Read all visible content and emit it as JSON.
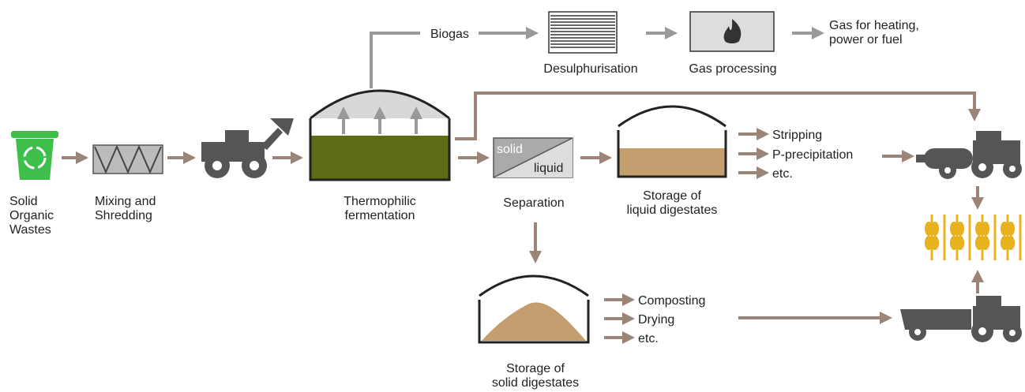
{
  "nodes": [
    {
      "label": [
        "Solid",
        "Organic",
        "Wastes"
      ]
    },
    {
      "label": [
        "Mixing and",
        "Shredding"
      ]
    },
    {
      "label": [
        "Thermophilic",
        "fermentation"
      ]
    },
    {
      "label": [
        "Biogas"
      ]
    },
    {
      "label": [
        "Desulphurisation"
      ]
    },
    {
      "label": [
        "Gas processing"
      ]
    },
    {
      "label": [
        "Gas for heating,",
        "power or fuel"
      ]
    },
    {
      "label": [
        "Separation"
      ],
      "box": [
        "solid",
        "liquid"
      ]
    },
    {
      "label": [
        "Storage of",
        "liquid digestates"
      ]
    },
    {
      "label": [
        "Storage of",
        "solid digestates"
      ]
    }
  ],
  "liquid_uses": [
    "Stripping",
    "P-precipitation",
    "etc."
  ],
  "solid_uses": [
    "Composting",
    "Drying",
    "etc."
  ]
}
